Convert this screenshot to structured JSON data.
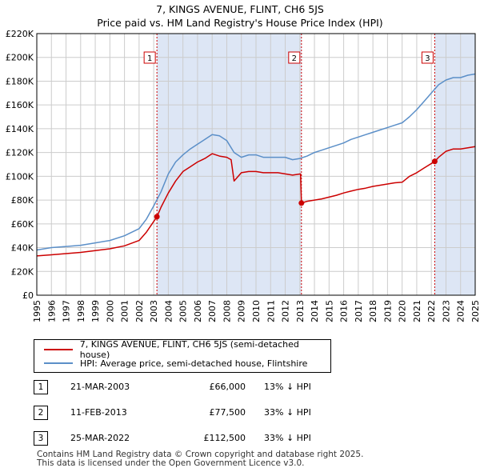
{
  "title": "7, KINGS AVENUE, FLINT, CH6 5JS",
  "subtitle": "Price paid vs. HM Land Registry's House Price Index (HPI)",
  "legend": {
    "property": "7, KINGS AVENUE, FLINT, CH6 5JS (semi-detached house)",
    "hpi": "HPI: Average price, semi-detached house, Flintshire"
  },
  "colors": {
    "property": "#cc0000",
    "hpi": "#5b8fc8",
    "shade": "#dde6f5",
    "grid": "#cccccc",
    "marker_box": "#cc0000"
  },
  "sales": [
    {
      "num": "1",
      "date": "21-MAR-2003",
      "price": "£66,000",
      "hpi": "13% ↓ HPI",
      "year": 2003.22,
      "value": 66000
    },
    {
      "num": "2",
      "date": "11-FEB-2013",
      "price": "£77,500",
      "hpi": "33% ↓ HPI",
      "year": 2013.11,
      "value": 77500
    },
    {
      "num": "3",
      "date": "25-MAR-2022",
      "price": "£112,500",
      "hpi": "33% ↓ HPI",
      "year": 2022.23,
      "value": 112500
    }
  ],
  "footer": {
    "line1": "Contains HM Land Registry data © Crown copyright and database right 2025.",
    "line2": "This data is licensed under the Open Government Licence v3.0."
  },
  "chart_data": {
    "type": "line",
    "title": "7, KINGS AVENUE, FLINT, CH6 5JS",
    "xlabel": "",
    "ylabel": "",
    "xlim": [
      1995,
      2025
    ],
    "ylim": [
      0,
      220000
    ],
    "y_ticks": [
      0,
      20000,
      40000,
      60000,
      80000,
      100000,
      120000,
      140000,
      160000,
      180000,
      200000,
      220000
    ],
    "y_tick_labels": [
      "£0",
      "£20K",
      "£40K",
      "£60K",
      "£80K",
      "£100K",
      "£120K",
      "£140K",
      "£160K",
      "£180K",
      "£200K",
      "£220K"
    ],
    "x_ticks": [
      1995,
      1996,
      1997,
      1998,
      1999,
      2000,
      2001,
      2002,
      2003,
      2004,
      2005,
      2006,
      2007,
      2008,
      2009,
      2010,
      2011,
      2012,
      2013,
      2014,
      2015,
      2016,
      2017,
      2018,
      2019,
      2020,
      2021,
      2022,
      2023,
      2024,
      2025
    ],
    "grid": true,
    "series": [
      {
        "name": "HPI: Average price, semi-detached house, Flintshire",
        "x": [
          1995,
          1996,
          1997,
          1998,
          1999,
          2000,
          2001,
          2002,
          2002.5,
          2003,
          2003.5,
          2004,
          2004.5,
          2005,
          2005.5,
          2006,
          2006.5,
          2007,
          2007.5,
          2008,
          2008.5,
          2009,
          2009.5,
          2010,
          2010.5,
          2011,
          2011.5,
          2012,
          2012.5,
          2013,
          2013.5,
          2014,
          2014.5,
          2015,
          2015.5,
          2016,
          2016.5,
          2017,
          2017.5,
          2018,
          2018.5,
          2019,
          2019.5,
          2020,
          2020.5,
          2021,
          2021.5,
          2022,
          2022.5,
          2023,
          2023.5,
          2024,
          2024.5,
          2025
        ],
        "values": [
          38000,
          40000,
          41000,
          42000,
          44000,
          46000,
          50000,
          56000,
          64000,
          75000,
          87000,
          102000,
          112000,
          118000,
          123000,
          127000,
          131000,
          135000,
          134000,
          130000,
          120000,
          116000,
          118000,
          118000,
          116000,
          116000,
          116000,
          116000,
          114000,
          115000,
          117000,
          120000,
          122000,
          124000,
          126000,
          128000,
          131000,
          133000,
          135000,
          137000,
          139000,
          141000,
          143000,
          145000,
          150000,
          156000,
          163000,
          170000,
          177000,
          181000,
          183000,
          183000,
          185000,
          186000
        ]
      },
      {
        "name": "7, KINGS AVENUE, FLINT, CH6 5JS (semi-detached house)",
        "x": [
          1995,
          1996,
          1997,
          1998,
          1999,
          2000,
          2001,
          2002,
          2002.5,
          2003.22,
          2003.5,
          2004,
          2004.5,
          2005,
          2005.5,
          2006,
          2006.5,
          2007,
          2007.5,
          2008,
          2008.3,
          2008.5,
          2009,
          2009.5,
          2010,
          2010.5,
          2011,
          2011.5,
          2012,
          2012.5,
          2013.05,
          2013.11,
          2013.5,
          2014,
          2014.5,
          2015,
          2015.5,
          2016,
          2016.5,
          2017,
          2017.5,
          2018,
          2018.5,
          2019,
          2019.5,
          2020,
          2020.5,
          2021,
          2021.5,
          2022.23,
          2022.5,
          2023,
          2023.5,
          2024,
          2024.5,
          2025
        ],
        "values": [
          33000,
          34000,
          35000,
          36000,
          37500,
          39000,
          41500,
          46000,
          53000,
          66000,
          74000,
          86000,
          96000,
          104000,
          108000,
          112000,
          115000,
          119000,
          117000,
          116000,
          114000,
          96000,
          103000,
          104000,
          104000,
          103000,
          103000,
          103000,
          102000,
          101000,
          102000,
          77500,
          79000,
          80000,
          81000,
          82500,
          84000,
          86000,
          87500,
          89000,
          90000,
          91500,
          92500,
          93500,
          94500,
          95000,
          100000,
          103000,
          107000,
          112500,
          116000,
          121000,
          123000,
          123000,
          124000,
          125000
        ]
      }
    ],
    "annotations": [
      {
        "label": "1",
        "x": 2003.22
      },
      {
        "label": "2",
        "x": 2013.11
      },
      {
        "label": "3",
        "x": 2022.23
      }
    ],
    "shaded_regions": [
      [
        2003.22,
        2013.11
      ],
      [
        2022.23,
        2025
      ]
    ]
  }
}
